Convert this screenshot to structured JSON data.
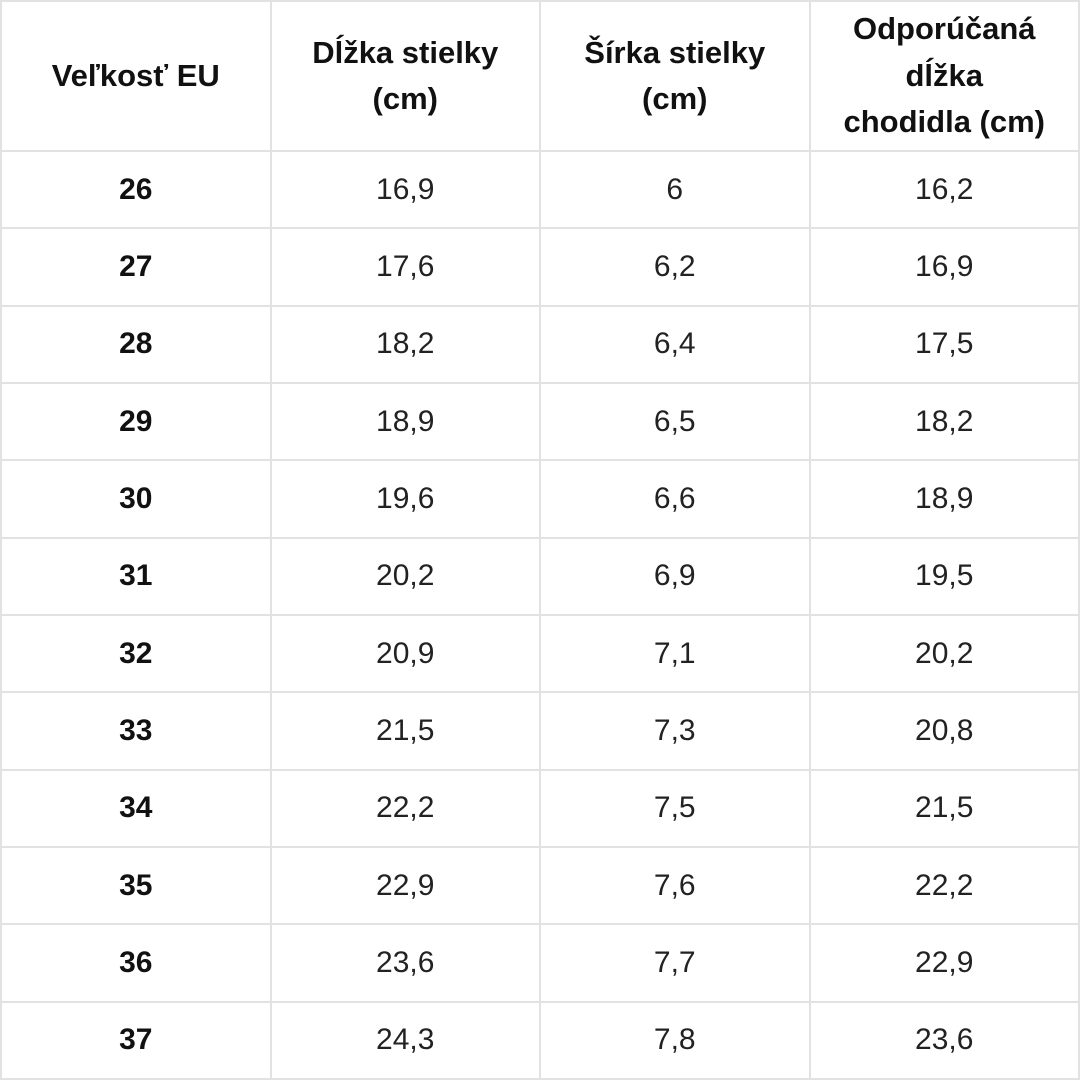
{
  "page": {
    "background_color": "#ffffff",
    "border_color": "#e2e2e2",
    "header_text_color": "#111111",
    "value_text_color": "#222222"
  },
  "table": {
    "display_columns": [
      "Veľkosť EU",
      "Dĺžka stielky\n(cm)",
      "Šírka stielky\n(cm)",
      "Odporúčaná\ndĺžka\nchodidla (cm)"
    ],
    "rows": [
      [
        "26",
        "16,9",
        "6",
        "16,2"
      ],
      [
        "27",
        "17,6",
        "6,2",
        "16,9"
      ],
      [
        "28",
        "18,2",
        "6,4",
        "17,5"
      ],
      [
        "29",
        "18,9",
        "6,5",
        "18,2"
      ],
      [
        "30",
        "19,6",
        "6,6",
        "18,9"
      ],
      [
        "31",
        "20,2",
        "6,9",
        "19,5"
      ],
      [
        "32",
        "20,9",
        "7,1",
        "20,2"
      ],
      [
        "33",
        "21,5",
        "7,3",
        "20,8"
      ],
      [
        "34",
        "22,2",
        "7,5",
        "21,5"
      ],
      [
        "35",
        "22,9",
        "7,6",
        "22,2"
      ],
      [
        "36",
        "23,6",
        "7,7",
        "22,9"
      ],
      [
        "37",
        "24,3",
        "7,8",
        "23,6"
      ]
    ]
  },
  "chart_data": {
    "type": "table",
    "title": "",
    "columns": [
      "Veľkosť EU",
      "Dĺžka stielky (cm)",
      "Šírka stielky (cm)",
      "Odporúčaná dĺžka chodidla (cm)"
    ],
    "rows": [
      {
        "velkost_eu": 26,
        "dlzka_stielky_cm": "16,9",
        "sirka_stielky_cm": "6",
        "odporucana_dlzka_chodidla_cm": "16,2"
      },
      {
        "velkost_eu": 27,
        "dlzka_stielky_cm": "17,6",
        "sirka_stielky_cm": "6,2",
        "odporucana_dlzka_chodidla_cm": "16,9"
      },
      {
        "velkost_eu": 28,
        "dlzka_stielky_cm": "18,2",
        "sirka_stielky_cm": "6,4",
        "odporucana_dlzka_chodidla_cm": "17,5"
      },
      {
        "velkost_eu": 29,
        "dlzka_stielky_cm": "18,9",
        "sirka_stielky_cm": "6,5",
        "odporucana_dlzka_chodidla_cm": "18,2"
      },
      {
        "velkost_eu": 30,
        "dlzka_stielky_cm": "19,6",
        "sirka_stielky_cm": "6,6",
        "odporucana_dlzka_chodidla_cm": "18,9"
      },
      {
        "velkost_eu": 31,
        "dlzka_stielky_cm": "20,2",
        "sirka_stielky_cm": "6,9",
        "odporucana_dlzka_chodidla_cm": "19,5"
      },
      {
        "velkost_eu": 32,
        "dlzka_stielky_cm": "20,9",
        "sirka_stielky_cm": "7,1",
        "odporucana_dlzka_chodidla_cm": "20,2"
      },
      {
        "velkost_eu": 33,
        "dlzka_stielky_cm": "21,5",
        "sirka_stielky_cm": "7,3",
        "odporucana_dlzka_chodidla_cm": "20,8"
      },
      {
        "velkost_eu": 34,
        "dlzka_stielky_cm": "22,2",
        "sirka_stielky_cm": "7,5",
        "odporucana_dlzka_chodidla_cm": "21,5"
      },
      {
        "velkost_eu": 35,
        "dlzka_stielky_cm": "22,9",
        "sirka_stielky_cm": "7,6",
        "odporucana_dlzka_chodidla_cm": "22,2"
      },
      {
        "velkost_eu": 36,
        "dlzka_stielky_cm": "23,6",
        "sirka_stielky_cm": "7,7",
        "odporucana_dlzka_chodidla_cm": "22,9"
      },
      {
        "velkost_eu": 37,
        "dlzka_stielky_cm": "24,3",
        "sirka_stielky_cm": "7,8",
        "odporucana_dlzka_chodidla_cm": "23,6"
      }
    ],
    "layout": {
      "grid": true,
      "header_row_bold": true,
      "first_column_bold": true,
      "decimal_separator": ","
    }
  }
}
